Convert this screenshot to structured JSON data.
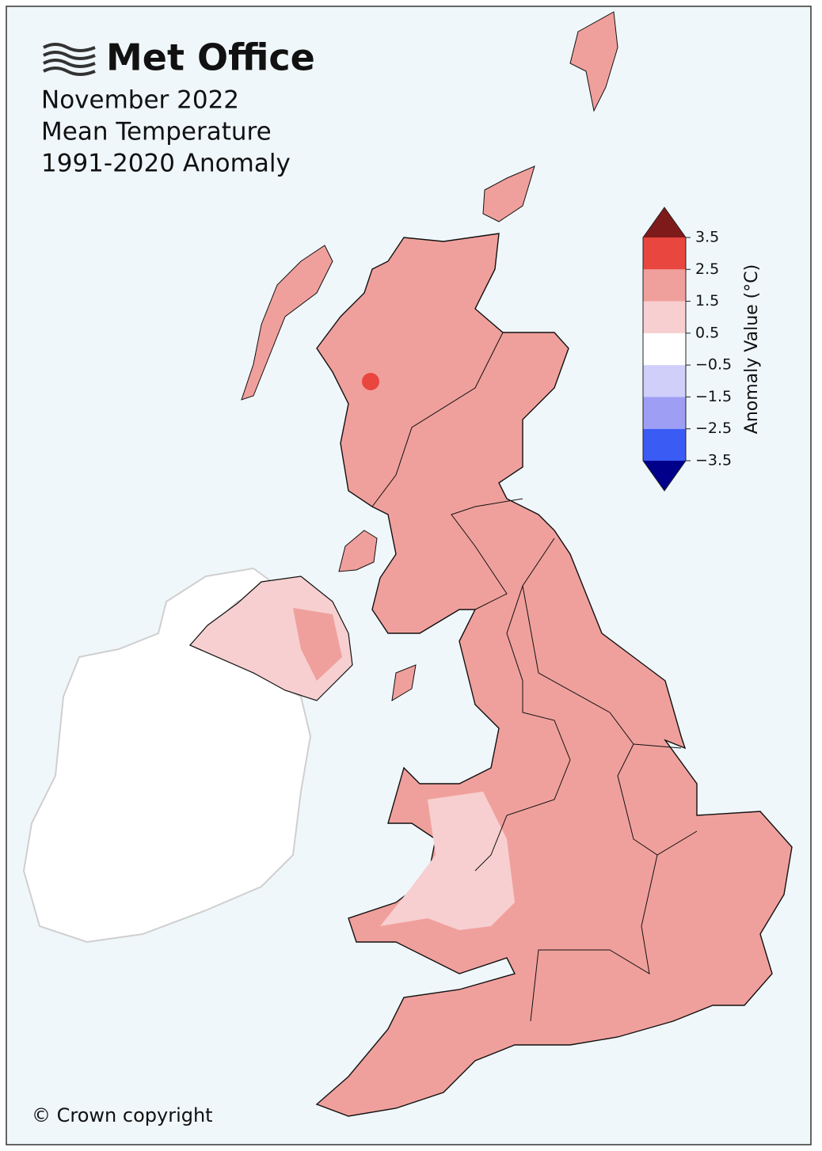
{
  "logo": "Met Office",
  "title_lines": [
    "November 2022",
    "Mean Temperature",
    "1991-2020 Anomaly"
  ],
  "copyright": "© Crown copyright",
  "colorbar": {
    "label": "Anomaly Value (°C)",
    "lim": [
      -3.5,
      3.5
    ],
    "ticks": [
      {
        "value": -3.5,
        "label": "−3.5"
      },
      {
        "value": -2.5,
        "label": "−2.5"
      },
      {
        "value": -1.5,
        "label": "−1.5"
      },
      {
        "value": -0.5,
        "label": "−0.5"
      },
      0.5,
      1.5,
      2.5,
      3.5
    ],
    "colors": [
      "#3a5cf5",
      "#9e9ef5",
      "#cfcffa",
      "#ffffff",
      "#f7cfd0",
      "#f0a09c",
      "#e8463f"
    ],
    "under_color": "#00008b",
    "over_color": "#7f1a1a"
  }
}
